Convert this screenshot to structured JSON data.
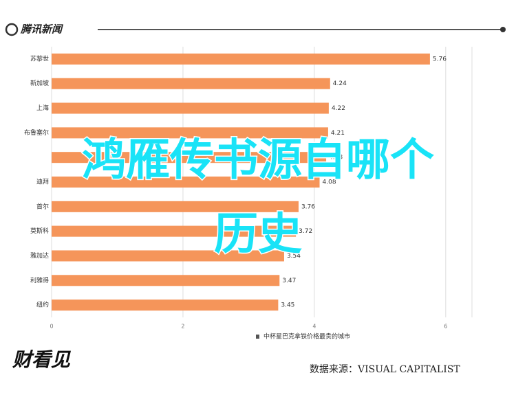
{
  "header": {
    "logo": "腾讯新闻"
  },
  "chart_data": {
    "type": "bar",
    "orientation": "horizontal",
    "categories": [
      "苏黎世",
      "新加坡",
      "上海",
      "布鲁塞尔",
      null,
      "迪拜",
      "首尔",
      "莫斯科",
      "雅加达",
      "利雅得",
      "纽约"
    ],
    "values": [
      5.76,
      4.24,
      4.22,
      4.21,
      4.18,
      4.08,
      3.76,
      3.72,
      3.54,
      3.47,
      3.45
    ],
    "color": "#f5955a",
    "xlim": [
      0,
      6.4
    ],
    "xticks": [
      0,
      2,
      4,
      6
    ],
    "grid": true,
    "xlabel": "中杯星巴克拿铁价格最贵的城市"
  },
  "overlay": {
    "line1": "鸿雁传书源自哪个",
    "line2": "历史"
  },
  "footer": {
    "logo": "财看见",
    "source": "数据来源：VISUAL CAPITALIST"
  }
}
